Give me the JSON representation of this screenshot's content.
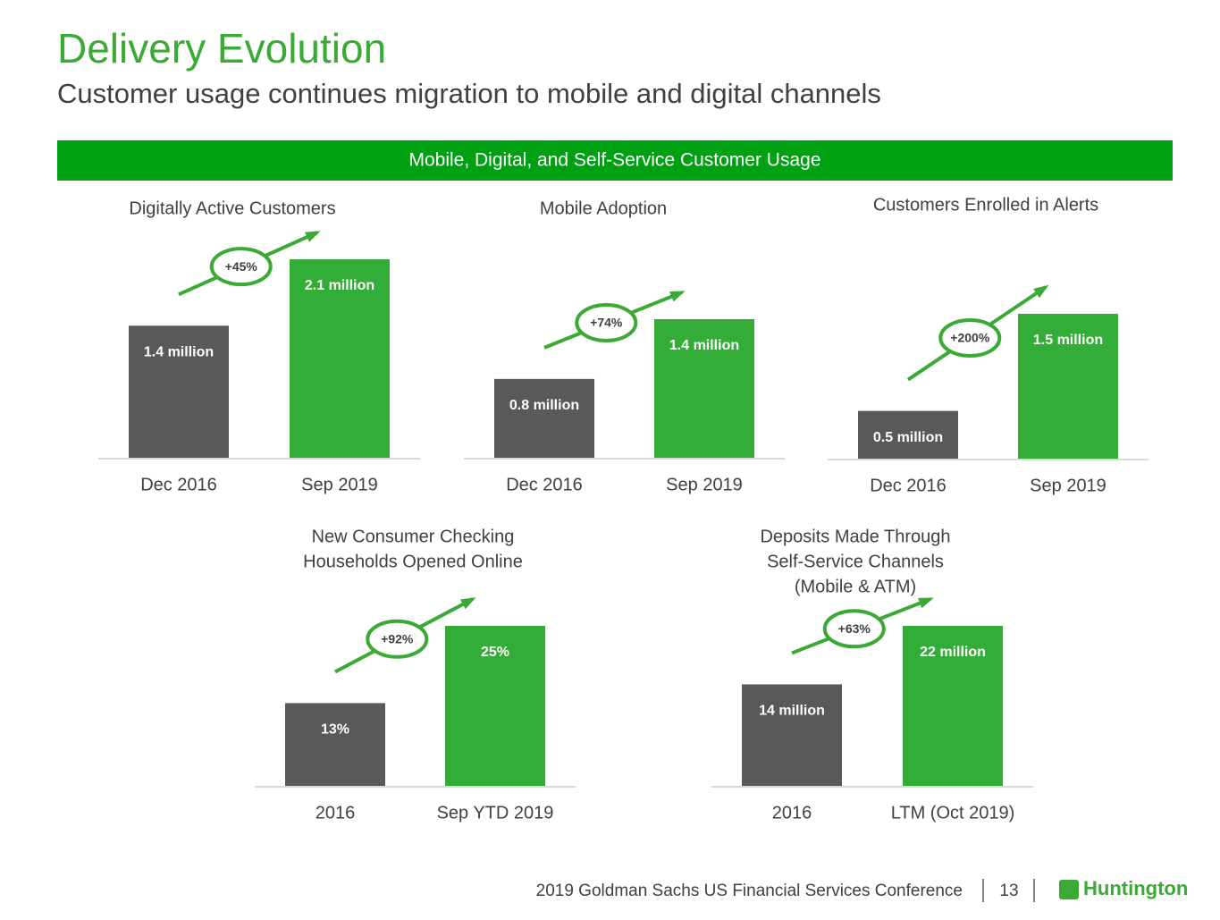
{
  "header": {
    "title": "Delivery Evolution",
    "subtitle": "Customer usage continues migration to mobile and digital channels",
    "banner": "Mobile, Digital, and Self-Service Customer Usage"
  },
  "chart_data": [
    {
      "type": "bar",
      "title": [
        "Digitally Active Customers"
      ],
      "categories": [
        "Dec 2016",
        "Sep 2019"
      ],
      "values": [
        1.4,
        2.1
      ],
      "value_labels": [
        "1.4 million",
        "2.1 million"
      ],
      "colors": [
        "#595959",
        "#33ad37"
      ],
      "annotation": "+45%"
    },
    {
      "type": "bar",
      "title": [
        "Mobile Adoption"
      ],
      "categories": [
        "Dec 2016",
        "Sep 2019"
      ],
      "values": [
        0.8,
        1.4
      ],
      "value_labels": [
        "0.8 million",
        "1.4 million"
      ],
      "colors": [
        "#595959",
        "#33ad37"
      ],
      "annotation": "+74%"
    },
    {
      "type": "bar",
      "title": [
        "Customers Enrolled in Alerts"
      ],
      "categories": [
        "Dec 2016",
        "Sep 2019"
      ],
      "values": [
        0.5,
        1.5
      ],
      "value_labels": [
        "0.5 million",
        "1.5 million"
      ],
      "colors": [
        "#595959",
        "#33ad37"
      ],
      "annotation": "+200%"
    },
    {
      "type": "bar",
      "title": [
        "New Consumer Checking",
        "Households Opened Online"
      ],
      "categories": [
        "2016",
        "Sep YTD 2019"
      ],
      "values": [
        13,
        25
      ],
      "value_labels": [
        "13%",
        "25%"
      ],
      "colors": [
        "#595959",
        "#33ad37"
      ],
      "annotation": "+92%"
    },
    {
      "type": "bar",
      "title": [
        "Deposits Made Through",
        "Self-Service Channels",
        "(Mobile & ATM)"
      ],
      "categories": [
        "2016",
        "LTM (Oct 2019)"
      ],
      "values": [
        14,
        22
      ],
      "value_labels": [
        "14 million",
        "22 million"
      ],
      "colors": [
        "#595959",
        "#33ad37"
      ],
      "annotation": "+63%"
    }
  ],
  "footer": {
    "conference": "2019 Goldman Sachs US Financial Services Conference",
    "page": "13",
    "logo": "Huntington"
  }
}
